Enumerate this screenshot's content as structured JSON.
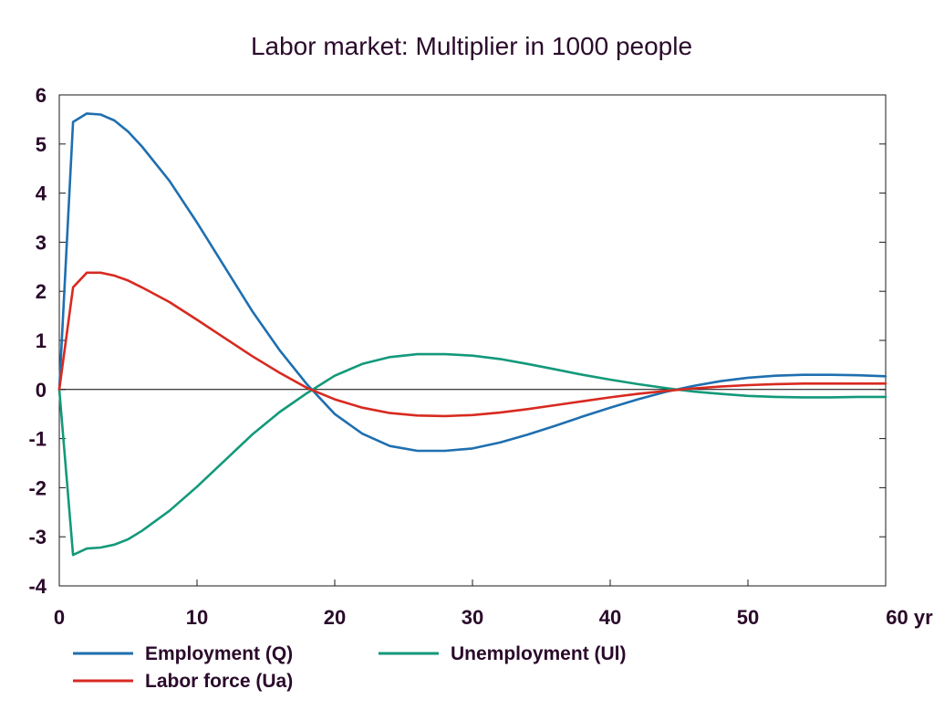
{
  "chart_data": {
    "type": "line",
    "title": "Labor market: Multiplier in 1000 people",
    "x_unit": "yr",
    "xlim": [
      0,
      60
    ],
    "ylim": [
      -4,
      6
    ],
    "x_ticks": [
      0,
      10,
      20,
      30,
      40,
      50,
      60
    ],
    "x_tick_labels": [
      "0",
      "10",
      "20",
      "30",
      "40",
      "50",
      "60 yr"
    ],
    "y_ticks": [
      6,
      5,
      4,
      3,
      2,
      1,
      0,
      -1,
      -2,
      -3,
      -4
    ],
    "y_tick_labels": [
      "6",
      "5",
      "4",
      "3",
      "2",
      "1",
      "0",
      "-1",
      "-2",
      "-3",
      "-4"
    ],
    "grid": false,
    "legend": "bottom",
    "x": [
      0,
      1,
      2,
      3,
      4,
      5,
      6,
      8,
      10,
      12,
      14,
      16,
      18,
      20,
      22,
      24,
      26,
      28,
      30,
      32,
      34,
      36,
      38,
      40,
      42,
      44,
      46,
      48,
      50,
      52,
      54,
      56,
      58,
      60
    ],
    "series": [
      {
        "name": "Employment (Q)",
        "color": "#1f6fb0",
        "values": [
          0,
          5.45,
          5.62,
          5.6,
          5.48,
          5.25,
          4.95,
          4.25,
          3.4,
          2.5,
          1.6,
          0.8,
          0.1,
          -0.5,
          -0.9,
          -1.15,
          -1.25,
          -1.25,
          -1.2,
          -1.08,
          -0.92,
          -0.74,
          -0.55,
          -0.37,
          -0.2,
          -0.05,
          0.07,
          0.17,
          0.24,
          0.28,
          0.3,
          0.3,
          0.29,
          0.27
        ]
      },
      {
        "name": "Labor force (Ua)",
        "color": "#d82a20",
        "values": [
          0,
          2.08,
          2.38,
          2.38,
          2.32,
          2.22,
          2.08,
          1.78,
          1.42,
          1.05,
          0.68,
          0.34,
          0.03,
          -0.2,
          -0.37,
          -0.48,
          -0.53,
          -0.54,
          -0.52,
          -0.47,
          -0.4,
          -0.32,
          -0.24,
          -0.16,
          -0.09,
          -0.03,
          0.02,
          0.06,
          0.09,
          0.11,
          0.12,
          0.12,
          0.12,
          0.12
        ]
      },
      {
        "name": "Unemployment (Ul)",
        "color": "#13997a",
        "values": [
          0,
          -3.37,
          -3.24,
          -3.22,
          -3.16,
          -3.05,
          -2.88,
          -2.47,
          -1.98,
          -1.45,
          -0.92,
          -0.46,
          -0.07,
          0.28,
          0.52,
          0.66,
          0.72,
          0.72,
          0.69,
          0.62,
          0.52,
          0.41,
          0.3,
          0.2,
          0.11,
          0.03,
          -0.04,
          -0.09,
          -0.13,
          -0.15,
          -0.16,
          -0.16,
          -0.15,
          -0.15
        ]
      }
    ]
  }
}
